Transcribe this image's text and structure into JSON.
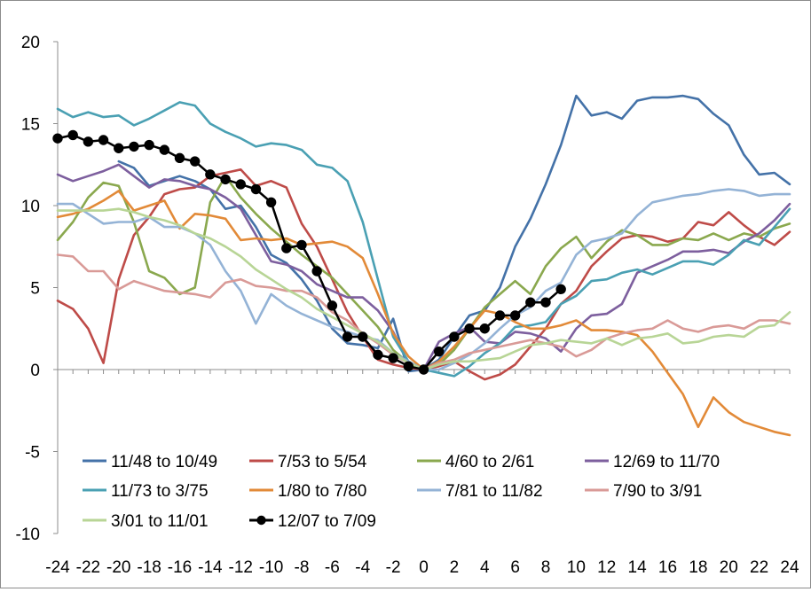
{
  "chart_data": {
    "type": "line",
    "title": "",
    "xlabel": "",
    "ylabel": "",
    "xlim": [
      -24,
      24
    ],
    "ylim": [
      -10,
      20
    ],
    "yticks": [
      -10,
      -5,
      0,
      5,
      10,
      15,
      20
    ],
    "xticks": [
      -24,
      -22,
      -20,
      -18,
      -16,
      -14,
      -12,
      -10,
      -8,
      -6,
      -4,
      -2,
      0,
      2,
      4,
      6,
      8,
      10,
      12,
      14,
      16,
      18,
      20,
      22,
      24
    ],
    "legend_position": "bottom",
    "series": [
      {
        "name": "11/48 to 10/49",
        "color": "#4472a8",
        "marker": false,
        "x": [
          -20,
          -19,
          -18,
          -17,
          -16,
          -15,
          -14,
          -13,
          -12,
          -11,
          -10,
          -9,
          -8,
          -7,
          -6,
          -5,
          -4,
          -3,
          -2,
          -1,
          0,
          1,
          2,
          3,
          4,
          5,
          6,
          7,
          8,
          9,
          10,
          11,
          12,
          13,
          14,
          15,
          16,
          17,
          18,
          19,
          20,
          21,
          22,
          23,
          24
        ],
        "y": [
          12.7,
          12.3,
          11.2,
          11.5,
          11.8,
          11.5,
          11.0,
          9.8,
          10.0,
          8.7,
          7.0,
          6.5,
          5.5,
          4.2,
          2.5,
          1.6,
          1.5,
          1.3,
          3.1,
          -0.1,
          0.0,
          0.6,
          2.0,
          3.3,
          3.6,
          5.0,
          7.5,
          9.2,
          11.3,
          13.7,
          16.7,
          15.5,
          15.7,
          15.3,
          16.4,
          16.6,
          16.6,
          16.7,
          16.5,
          15.6,
          14.9,
          13.1,
          11.9,
          12.0,
          11.3
        ]
      },
      {
        "name": "7/53 to 5/54",
        "color": "#be4b48",
        "marker": false,
        "x": [
          -24,
          -23,
          -22,
          -21,
          -20,
          -19,
          -18,
          -17,
          -16,
          -15,
          -14,
          -13,
          -12,
          -11,
          -10,
          -9,
          -8,
          -7,
          -6,
          -5,
          -4,
          -3,
          -2,
          -1,
          0,
          1,
          2,
          3,
          4,
          5,
          6,
          7,
          8,
          9,
          10,
          11,
          12,
          13,
          14,
          15,
          16,
          17,
          18,
          19,
          20,
          21,
          22,
          23,
          24
        ],
        "y": [
          4.2,
          3.7,
          2.5,
          0.4,
          5.5,
          8.2,
          9.3,
          10.7,
          11.0,
          11.1,
          11.8,
          12.0,
          12.2,
          11.2,
          11.5,
          11.1,
          8.9,
          7.5,
          5.5,
          3.5,
          2.0,
          0.6,
          0.3,
          0.1,
          0.0,
          0.2,
          0.5,
          -0.1,
          -0.6,
          -0.3,
          0.3,
          1.4,
          2.5,
          4.0,
          4.8,
          6.3,
          7.2,
          8.0,
          8.2,
          8.1,
          7.8,
          8.0,
          9.0,
          8.8,
          9.6,
          8.8,
          8.1,
          7.6,
          8.4
        ]
      },
      {
        "name": "4/60 to 2/61",
        "color": "#8aa84e",
        "marker": false,
        "x": [
          -24,
          -23,
          -22,
          -21,
          -20,
          -19,
          -18,
          -17,
          -16,
          -15,
          -14,
          -13,
          -12,
          -11,
          -10,
          -9,
          -8,
          -7,
          -6,
          -5,
          -4,
          -3,
          -2,
          -1,
          0,
          1,
          2,
          3,
          4,
          5,
          6,
          7,
          8,
          9,
          10,
          11,
          12,
          13,
          14,
          15,
          16,
          17,
          18,
          19,
          20,
          21,
          22,
          23,
          24
        ],
        "y": [
          7.9,
          9.0,
          10.5,
          11.4,
          11.2,
          9.0,
          6.0,
          5.6,
          4.6,
          5.0,
          10.2,
          11.8,
          10.5,
          9.5,
          8.6,
          7.8,
          7.0,
          6.3,
          5.6,
          4.6,
          3.6,
          2.6,
          1.2,
          0.4,
          0.0,
          0.3,
          1.2,
          2.5,
          3.8,
          4.6,
          5.4,
          4.6,
          6.3,
          7.4,
          8.1,
          6.8,
          7.8,
          8.5,
          8.2,
          7.6,
          7.6,
          8.0,
          7.9,
          8.3,
          7.9,
          8.3,
          8.1,
          8.6,
          8.9
        ]
      },
      {
        "name": "12/69 to 11/70",
        "color": "#7d5f9e",
        "marker": false,
        "x": [
          -24,
          -23,
          -22,
          -21,
          -20,
          -19,
          -18,
          -17,
          -16,
          -15,
          -14,
          -13,
          -12,
          -11,
          -10,
          -9,
          -8,
          -7,
          -6,
          -5,
          -4,
          -3,
          -2,
          -1,
          0,
          1,
          2,
          3,
          4,
          5,
          6,
          7,
          8,
          9,
          10,
          11,
          12,
          13,
          14,
          15,
          16,
          17,
          18,
          19,
          20,
          21,
          22,
          23,
          24
        ],
        "y": [
          11.9,
          11.5,
          11.8,
          12.1,
          12.5,
          11.8,
          11.1,
          11.6,
          11.5,
          11.2,
          11.0,
          10.5,
          9.8,
          8.2,
          6.6,
          6.4,
          6.0,
          5.2,
          4.8,
          4.4,
          4.4,
          3.6,
          2.3,
          0.4,
          0.0,
          1.7,
          2.2,
          2.6,
          1.7,
          1.6,
          2.3,
          2.2,
          1.9,
          1.1,
          2.5,
          3.3,
          3.4,
          4.0,
          5.9,
          6.3,
          6.7,
          7.2,
          7.2,
          7.3,
          7.1,
          7.8,
          8.3,
          9.1,
          10.1
        ]
      },
      {
        "name": "11/73 to 3/75",
        "color": "#4aa0b3",
        "marker": false,
        "x": [
          -24,
          -23,
          -22,
          -21,
          -20,
          -19,
          -18,
          -17,
          -16,
          -15,
          -14,
          -13,
          -12,
          -11,
          -10,
          -9,
          -8,
          -7,
          -6,
          -5,
          -4,
          -3,
          -2,
          -1,
          0,
          1,
          2,
          3,
          4,
          5,
          6,
          7,
          8,
          9,
          10,
          11,
          12,
          13,
          14,
          15,
          16,
          17,
          18,
          19,
          20,
          21,
          22,
          23,
          24
        ],
        "y": [
          15.9,
          15.4,
          15.7,
          15.4,
          15.5,
          14.9,
          15.3,
          15.8,
          16.3,
          16.1,
          15.0,
          14.5,
          14.1,
          13.6,
          13.8,
          13.7,
          13.4,
          12.5,
          12.3,
          11.5,
          9.0,
          5.5,
          2.0,
          0.5,
          0.0,
          -0.2,
          -0.4,
          0.2,
          1.0,
          1.6,
          2.6,
          2.7,
          2.9,
          4.0,
          4.5,
          5.4,
          5.5,
          5.9,
          6.1,
          5.8,
          6.2,
          6.6,
          6.6,
          6.4,
          7.0,
          7.9,
          7.6,
          8.7,
          9.8
        ]
      },
      {
        "name": "1/80 to 7/80",
        "color": "#e28a38",
        "marker": false,
        "x": [
          -24,
          -23,
          -22,
          -21,
          -20,
          -19,
          -18,
          -17,
          -16,
          -15,
          -14,
          -13,
          -12,
          -11,
          -10,
          -9,
          -8,
          -7,
          -6,
          -5,
          -4,
          -3,
          -2,
          -1,
          0,
          1,
          2,
          3,
          4,
          5,
          6,
          7,
          8,
          9,
          10,
          11,
          12,
          13,
          14,
          15,
          16,
          17,
          18,
          19,
          20,
          21,
          22,
          23,
          24
        ],
        "y": [
          9.3,
          9.5,
          9.8,
          10.3,
          10.9,
          9.7,
          10.0,
          10.3,
          8.6,
          9.5,
          9.4,
          9.2,
          7.9,
          8.0,
          7.9,
          8.0,
          7.6,
          7.7,
          7.8,
          7.5,
          6.8,
          4.6,
          2.2,
          0.8,
          0.0,
          0.5,
          1.4,
          2.5,
          3.6,
          3.4,
          2.9,
          2.5,
          2.5,
          2.7,
          3.0,
          2.4,
          2.4,
          2.3,
          2.1,
          1.1,
          -0.2,
          -1.5,
          -3.5,
          -1.7,
          -2.6,
          -3.2,
          -3.5,
          -3.8,
          -4.0
        ]
      },
      {
        "name": "7/81 to 11/82",
        "color": "#94b3d6",
        "marker": false,
        "x": [
          -24,
          -23,
          -22,
          -21,
          -20,
          -19,
          -18,
          -17,
          -16,
          -15,
          -14,
          -13,
          -12,
          -11,
          -10,
          -9,
          -8,
          -7,
          -6,
          -5,
          -4,
          -3,
          -2,
          -1,
          0,
          1,
          2,
          3,
          4,
          5,
          6,
          7,
          8,
          9,
          10,
          11,
          12,
          13,
          14,
          15,
          16,
          17,
          18,
          19,
          20,
          21,
          22,
          23,
          24
        ],
        "y": [
          10.1,
          10.1,
          9.5,
          8.9,
          9.0,
          9.0,
          9.3,
          8.7,
          8.7,
          8.3,
          7.6,
          6.0,
          4.8,
          2.8,
          4.6,
          3.9,
          3.4,
          3.0,
          2.6,
          2.3,
          2.0,
          1.8,
          1.0,
          0.5,
          0.0,
          0.0,
          0.4,
          0.9,
          1.6,
          2.5,
          3.3,
          3.8,
          4.8,
          5.3,
          7.0,
          7.8,
          8.0,
          8.3,
          9.4,
          10.2,
          10.4,
          10.6,
          10.7,
          10.9,
          11.0,
          10.9,
          10.6,
          10.7,
          10.7
        ]
      },
      {
        "name": "7/90 to 3/91",
        "color": "#d99a97",
        "marker": false,
        "x": [
          -24,
          -23,
          -22,
          -21,
          -20,
          -19,
          -18,
          -17,
          -16,
          -15,
          -14,
          -13,
          -12,
          -11,
          -10,
          -9,
          -8,
          -7,
          -6,
          -5,
          -4,
          -3,
          -2,
          -1,
          0,
          1,
          2,
          3,
          4,
          5,
          6,
          7,
          8,
          9,
          10,
          11,
          12,
          13,
          14,
          15,
          16,
          17,
          18,
          19,
          20,
          21,
          22,
          23,
          24
        ],
        "y": [
          7.0,
          6.9,
          6.0,
          6.0,
          4.9,
          5.4,
          5.1,
          4.8,
          4.7,
          4.6,
          4.4,
          5.3,
          5.5,
          5.1,
          5.0,
          4.8,
          4.8,
          4.4,
          3.5,
          3.0,
          2.2,
          1.6,
          0.9,
          0.4,
          0.0,
          0.4,
          0.6,
          1.0,
          1.2,
          1.4,
          1.6,
          1.8,
          1.6,
          1.4,
          0.8,
          1.2,
          1.9,
          2.2,
          2.4,
          2.5,
          3.0,
          2.5,
          2.3,
          2.6,
          2.7,
          2.5,
          3.0,
          3.0,
          2.8
        ]
      },
      {
        "name": "3/01 to 11/01",
        "color": "#b8d596",
        "marker": false,
        "x": [
          -24,
          -23,
          -22,
          -21,
          -20,
          -19,
          -18,
          -17,
          -16,
          -15,
          -14,
          -13,
          -12,
          -11,
          -10,
          -9,
          -8,
          -7,
          -6,
          -5,
          -4,
          -3,
          -2,
          -1,
          0,
          1,
          2,
          3,
          4,
          5,
          6,
          7,
          8,
          9,
          10,
          11,
          12,
          13,
          14,
          15,
          16,
          17,
          18,
          19,
          20,
          21,
          22,
          23,
          24
        ],
        "y": [
          9.7,
          9.7,
          9.7,
          9.7,
          9.8,
          9.6,
          9.3,
          9.1,
          8.8,
          8.3,
          8.0,
          7.5,
          6.9,
          6.1,
          5.5,
          4.9,
          4.4,
          3.7,
          3.2,
          2.7,
          2.2,
          1.7,
          1.0,
          0.4,
          0.0,
          0.3,
          0.5,
          0.5,
          0.6,
          0.7,
          1.1,
          1.5,
          1.6,
          1.8,
          1.7,
          1.6,
          1.9,
          1.5,
          1.9,
          2.0,
          2.2,
          1.6,
          1.7,
          2.0,
          2.1,
          2.0,
          2.6,
          2.7,
          3.5
        ]
      },
      {
        "name": "12/07 to 7/09",
        "color": "#000000",
        "marker": true,
        "x": [
          -24,
          -23,
          -22,
          -21,
          -20,
          -19,
          -18,
          -17,
          -16,
          -15,
          -14,
          -13,
          -12,
          -11,
          -10,
          -9,
          -8,
          -7,
          -6,
          -5,
          -4,
          -3,
          -2,
          -1,
          0,
          1,
          2,
          3,
          4,
          5,
          6,
          7,
          8,
          9
        ],
        "y": [
          14.1,
          14.3,
          13.9,
          14.0,
          13.5,
          13.6,
          13.7,
          13.4,
          12.9,
          12.7,
          11.9,
          11.6,
          11.3,
          11.0,
          10.2,
          7.4,
          7.6,
          6.0,
          3.9,
          2.0,
          2.0,
          0.9,
          0.7,
          0.2,
          0.0,
          1.1,
          2.0,
          2.5,
          2.5,
          3.3,
          3.3,
          4.1,
          4.1,
          4.9
        ]
      }
    ]
  }
}
